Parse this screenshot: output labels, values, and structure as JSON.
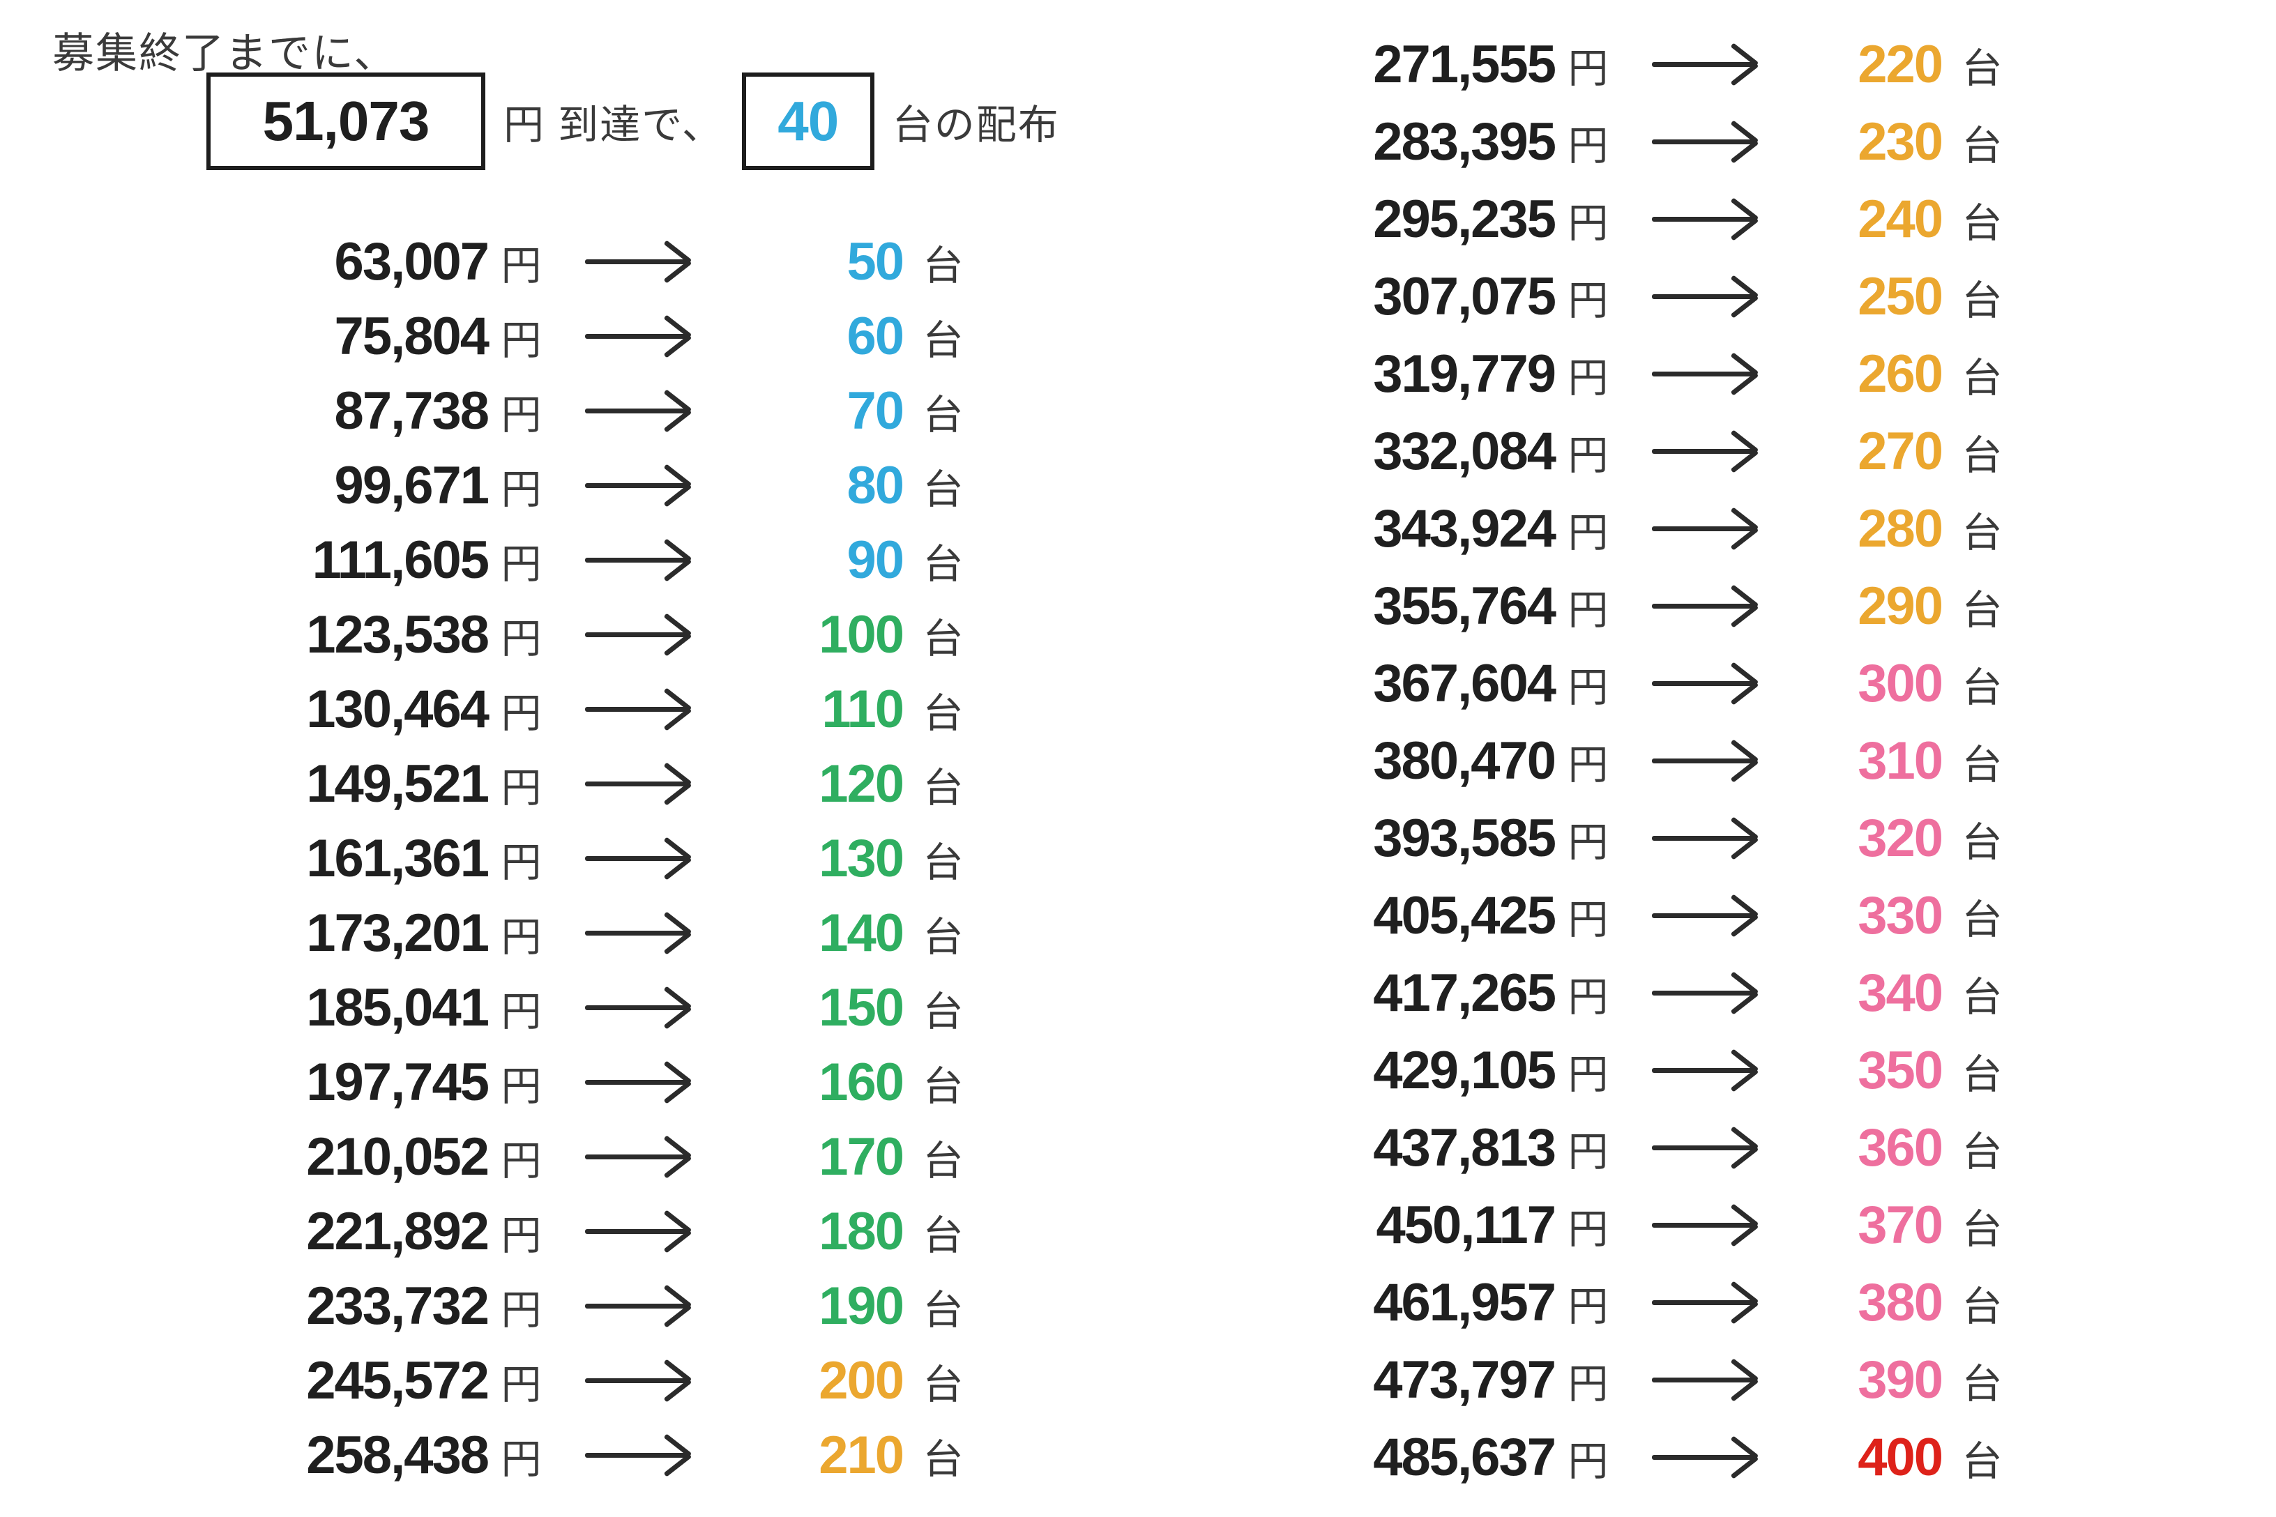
{
  "header": {
    "intro": "募集終了までに、",
    "goal_amount": "51,073",
    "unit_yen_reach": "円 到達で、",
    "goal_count": "40",
    "goal_count_color": "blue",
    "unit_dai_distribution": "台の配布"
  },
  "units": {
    "yen": "円",
    "dai": "台"
  },
  "palette": {
    "blue": "#31a9dc",
    "green": "#2fae60",
    "orange": "#eba72f",
    "pink": "#ee6f9e",
    "red": "#de221a",
    "price_text": "#1f1f1f",
    "unit_text": "#3a3a3a",
    "arrow": "#2b2b2b"
  },
  "columns": {
    "left": [
      {
        "price": "63,007",
        "count": "50",
        "color": "blue"
      },
      {
        "price": "75,804",
        "count": "60",
        "color": "blue"
      },
      {
        "price": "87,738",
        "count": "70",
        "color": "blue"
      },
      {
        "price": "99,671",
        "count": "80",
        "color": "blue"
      },
      {
        "price": "111,605",
        "count": "90",
        "color": "blue"
      },
      {
        "price": "123,538",
        "count": "100",
        "color": "green"
      },
      {
        "price": "130,464",
        "count": "110",
        "color": "green"
      },
      {
        "price": "149,521",
        "count": "120",
        "color": "green"
      },
      {
        "price": "161,361",
        "count": "130",
        "color": "green"
      },
      {
        "price": "173,201",
        "count": "140",
        "color": "green"
      },
      {
        "price": "185,041",
        "count": "150",
        "color": "green"
      },
      {
        "price": "197,745",
        "count": "160",
        "color": "green"
      },
      {
        "price": "210,052",
        "count": "170",
        "color": "green"
      },
      {
        "price": "221,892",
        "count": "180",
        "color": "green"
      },
      {
        "price": "233,732",
        "count": "190",
        "color": "green"
      },
      {
        "price": "245,572",
        "count": "200",
        "color": "orange"
      },
      {
        "price": "258,438",
        "count": "210",
        "color": "orange"
      }
    ],
    "right": [
      {
        "price": "271,555",
        "count": "220",
        "color": "orange"
      },
      {
        "price": "283,395",
        "count": "230",
        "color": "orange"
      },
      {
        "price": "295,235",
        "count": "240",
        "color": "orange"
      },
      {
        "price": "307,075",
        "count": "250",
        "color": "orange"
      },
      {
        "price": "319,779",
        "count": "260",
        "color": "orange"
      },
      {
        "price": "332,084",
        "count": "270",
        "color": "orange"
      },
      {
        "price": "343,924",
        "count": "280",
        "color": "orange"
      },
      {
        "price": "355,764",
        "count": "290",
        "color": "orange"
      },
      {
        "price": "367,604",
        "count": "300",
        "color": "pink"
      },
      {
        "price": "380,470",
        "count": "310",
        "color": "pink"
      },
      {
        "price": "393,585",
        "count": "320",
        "color": "pink"
      },
      {
        "price": "405,425",
        "count": "330",
        "color": "pink"
      },
      {
        "price": "417,265",
        "count": "340",
        "color": "pink"
      },
      {
        "price": "429,105",
        "count": "350",
        "color": "pink"
      },
      {
        "price": "437,813",
        "count": "360",
        "color": "pink"
      },
      {
        "price": "450,117",
        "count": "370",
        "color": "pink"
      },
      {
        "price": "461,957",
        "count": "380",
        "color": "pink"
      },
      {
        "price": "473,797",
        "count": "390",
        "color": "pink"
      },
      {
        "price": "485,637",
        "count": "400",
        "color": "red"
      }
    ]
  }
}
